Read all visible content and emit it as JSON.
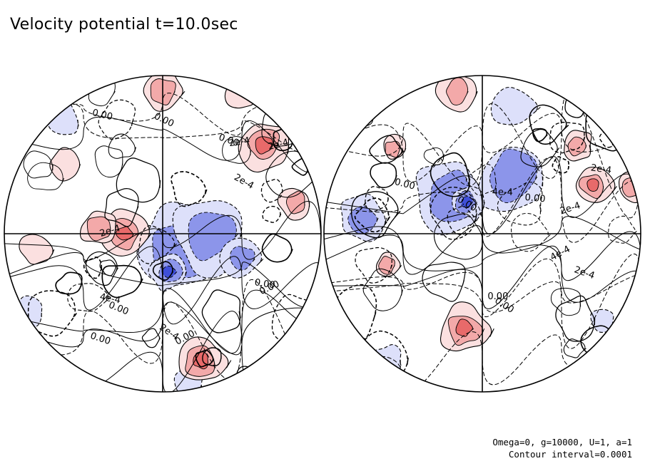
{
  "title": "Velocity potential t=10.0sec",
  "info": {
    "params": "Omega=0, g=10000, U=1, a=1",
    "contour": "Contour interval=0.0001"
  },
  "colors": {
    "positive_strong": "#e86a6a",
    "positive_mid": "#f3a9a9",
    "positive_light": "#fbe0e0",
    "negative_strong": "#3f4fd8",
    "negative_mid": "#8c95ea",
    "negative_light": "#dde0fa",
    "line": "#000000"
  },
  "hemispheres": [
    {
      "name": "left",
      "labels": [
        "2e-4",
        "0.00",
        "0.00",
        "0.00",
        "2e-4",
        "0.00",
        "0.00",
        "2e-4",
        "0.00",
        "4e-4",
        "0.00",
        "2e-4",
        "2e-4",
        "0.00"
      ],
      "pos": [
        {
          "u": 0.5,
          "v": 0.05,
          "r": 0.07,
          "level": 2
        },
        {
          "u": 0.82,
          "v": 0.22,
          "r": 0.08,
          "level": 3
        },
        {
          "u": 0.38,
          "v": 0.5,
          "r": 0.07,
          "level": 3
        },
        {
          "u": 0.3,
          "v": 0.48,
          "r": 0.06,
          "level": 2
        },
        {
          "u": 0.62,
          "v": 0.9,
          "r": 0.08,
          "level": 3
        },
        {
          "u": 0.92,
          "v": 0.4,
          "r": 0.05,
          "level": 2
        },
        {
          "u": 0.1,
          "v": 0.55,
          "r": 0.05,
          "level": 1
        },
        {
          "u": 0.75,
          "v": 0.06,
          "r": 0.05,
          "level": 1
        },
        {
          "u": 0.2,
          "v": 0.28,
          "r": 0.05,
          "level": 1
        }
      ],
      "neg": [
        {
          "u": 0.55,
          "v": 0.55,
          "r": 0.14,
          "level": 2
        },
        {
          "u": 0.65,
          "v": 0.5,
          "r": 0.12,
          "level": 2
        },
        {
          "u": 0.52,
          "v": 0.62,
          "r": 0.06,
          "level": 3
        },
        {
          "u": 0.75,
          "v": 0.58,
          "r": 0.06,
          "level": 2
        },
        {
          "u": 0.08,
          "v": 0.75,
          "r": 0.05,
          "level": 1
        },
        {
          "u": 0.58,
          "v": 0.98,
          "r": 0.05,
          "level": 1
        },
        {
          "u": 0.18,
          "v": 0.14,
          "r": 0.06,
          "level": 1
        }
      ]
    },
    {
      "name": "right",
      "labels": [
        "0.00",
        "0.00",
        "2e-4",
        "4e-4",
        "2e-4",
        "0.00",
        "0.00",
        "2e-4",
        "0.00",
        "4e-4"
      ],
      "pos": [
        {
          "u": 0.42,
          "v": 0.05,
          "r": 0.06,
          "level": 2
        },
        {
          "u": 0.8,
          "v": 0.22,
          "r": 0.05,
          "level": 2
        },
        {
          "u": 0.85,
          "v": 0.35,
          "r": 0.06,
          "level": 3
        },
        {
          "u": 0.44,
          "v": 0.8,
          "r": 0.08,
          "level": 3
        },
        {
          "u": 0.2,
          "v": 0.6,
          "r": 0.04,
          "level": 2
        },
        {
          "u": 0.22,
          "v": 0.23,
          "r": 0.04,
          "level": 2
        },
        {
          "u": 0.97,
          "v": 0.35,
          "r": 0.05,
          "level": 2
        }
      ],
      "neg": [
        {
          "u": 0.4,
          "v": 0.38,
          "r": 0.12,
          "level": 2
        },
        {
          "u": 0.6,
          "v": 0.32,
          "r": 0.12,
          "level": 2
        },
        {
          "u": 0.12,
          "v": 0.45,
          "r": 0.07,
          "level": 2
        },
        {
          "u": 0.6,
          "v": 0.1,
          "r": 0.07,
          "level": 1
        },
        {
          "u": 0.45,
          "v": 0.4,
          "r": 0.05,
          "level": 3
        },
        {
          "u": 0.2,
          "v": 0.9,
          "r": 0.05,
          "level": 1
        },
        {
          "u": 0.88,
          "v": 0.78,
          "r": 0.04,
          "level": 1
        }
      ]
    }
  ]
}
